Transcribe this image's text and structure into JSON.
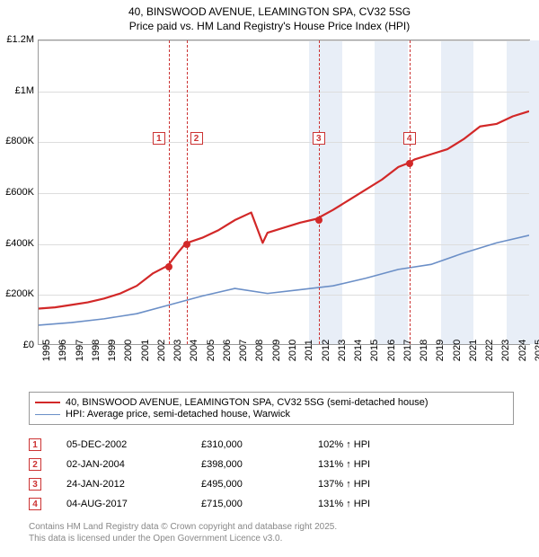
{
  "title_line1": "40, BINSWOOD AVENUE, LEAMINGTON SPA, CV32 5SG",
  "title_line2": "Price paid vs. HM Land Registry's House Price Index (HPI)",
  "chart": {
    "type": "line",
    "background_color": "#ffffff",
    "grid_color": "#dddddd",
    "border_color": "#999999",
    "x_years": [
      1995,
      1996,
      1997,
      1998,
      1999,
      2000,
      2001,
      2002,
      2003,
      2004,
      2005,
      2006,
      2007,
      2008,
      2009,
      2010,
      2011,
      2012,
      2013,
      2014,
      2015,
      2016,
      2017,
      2018,
      2019,
      2020,
      2021,
      2022,
      2023,
      2024,
      2025
    ],
    "ylim": [
      0,
      1200000
    ],
    "ytick_step": 200000,
    "ytick_labels": [
      "£0",
      "£200K",
      "£400K",
      "£600K",
      "£800K",
      "£1M",
      "£1.2M"
    ],
    "band_color": "#e8eef7",
    "band_years": [
      [
        2011.5,
        2013.5
      ],
      [
        2015.5,
        2017.5
      ],
      [
        2019.5,
        2021.5
      ],
      [
        2023.5,
        2025.5
      ]
    ],
    "series": [
      {
        "name": "price_paid",
        "color": "#d22828",
        "line_width": 2.2,
        "x": [
          1995,
          1996,
          1997,
          1998,
          1999,
          2000,
          2001,
          2002,
          2002.9,
          2003.5,
          2004,
          2005,
          2006,
          2007,
          2008,
          2008.7,
          2009,
          2010,
          2011,
          2012,
          2013,
          2014,
          2015,
          2016,
          2017,
          2017.6,
          2018,
          2019,
          2020,
          2021,
          2022,
          2023,
          2024,
          2025
        ],
        "y": [
          140000,
          145000,
          155000,
          165000,
          180000,
          200000,
          230000,
          280000,
          310000,
          360000,
          398000,
          420000,
          450000,
          490000,
          520000,
          400000,
          440000,
          460000,
          480000,
          495000,
          530000,
          570000,
          610000,
          650000,
          700000,
          715000,
          730000,
          750000,
          770000,
          810000,
          860000,
          870000,
          900000,
          920000
        ]
      },
      {
        "name": "hpi",
        "color": "#6b8fc7",
        "line_width": 1.6,
        "x": [
          1995,
          1997,
          1999,
          2001,
          2003,
          2005,
          2007,
          2009,
          2011,
          2013,
          2015,
          2017,
          2019,
          2021,
          2023,
          2025
        ],
        "y": [
          75000,
          85000,
          100000,
          120000,
          155000,
          190000,
          220000,
          200000,
          215000,
          230000,
          260000,
          295000,
          315000,
          360000,
          400000,
          430000
        ]
      }
    ],
    "markers": [
      {
        "n": "1",
        "year": 2002.93,
        "price": 310000
      },
      {
        "n": "2",
        "year": 2004.01,
        "price": 398000
      },
      {
        "n": "3",
        "year": 2012.07,
        "price": 495000
      },
      {
        "n": "4",
        "year": 2017.59,
        "price": 715000
      }
    ],
    "marker_line_color": "#cc3333",
    "marker_dot_color": "#d22828",
    "label_fontsize": 11
  },
  "legend": {
    "items": [
      {
        "color": "#d22828",
        "width": 2.2,
        "label": "40, BINSWOOD AVENUE, LEAMINGTON SPA, CV32 5SG (semi-detached house)"
      },
      {
        "color": "#6b8fc7",
        "width": 1.6,
        "label": "HPI: Average price, semi-detached house, Warwick"
      }
    ]
  },
  "table": {
    "rows": [
      {
        "n": "1",
        "date": "05-DEC-2002",
        "price": "£310,000",
        "pct": "102%",
        "suffix": "HPI"
      },
      {
        "n": "2",
        "date": "02-JAN-2004",
        "price": "£398,000",
        "pct": "131%",
        "suffix": "HPI"
      },
      {
        "n": "3",
        "date": "24-JAN-2012",
        "price": "£495,000",
        "pct": "137%",
        "suffix": "HPI"
      },
      {
        "n": "4",
        "date": "04-AUG-2017",
        "price": "£715,000",
        "pct": "131%",
        "suffix": "HPI"
      }
    ]
  },
  "footer_line1": "Contains HM Land Registry data © Crown copyright and database right 2025.",
  "footer_line2": "This data is licensed under the Open Government Licence v3.0."
}
